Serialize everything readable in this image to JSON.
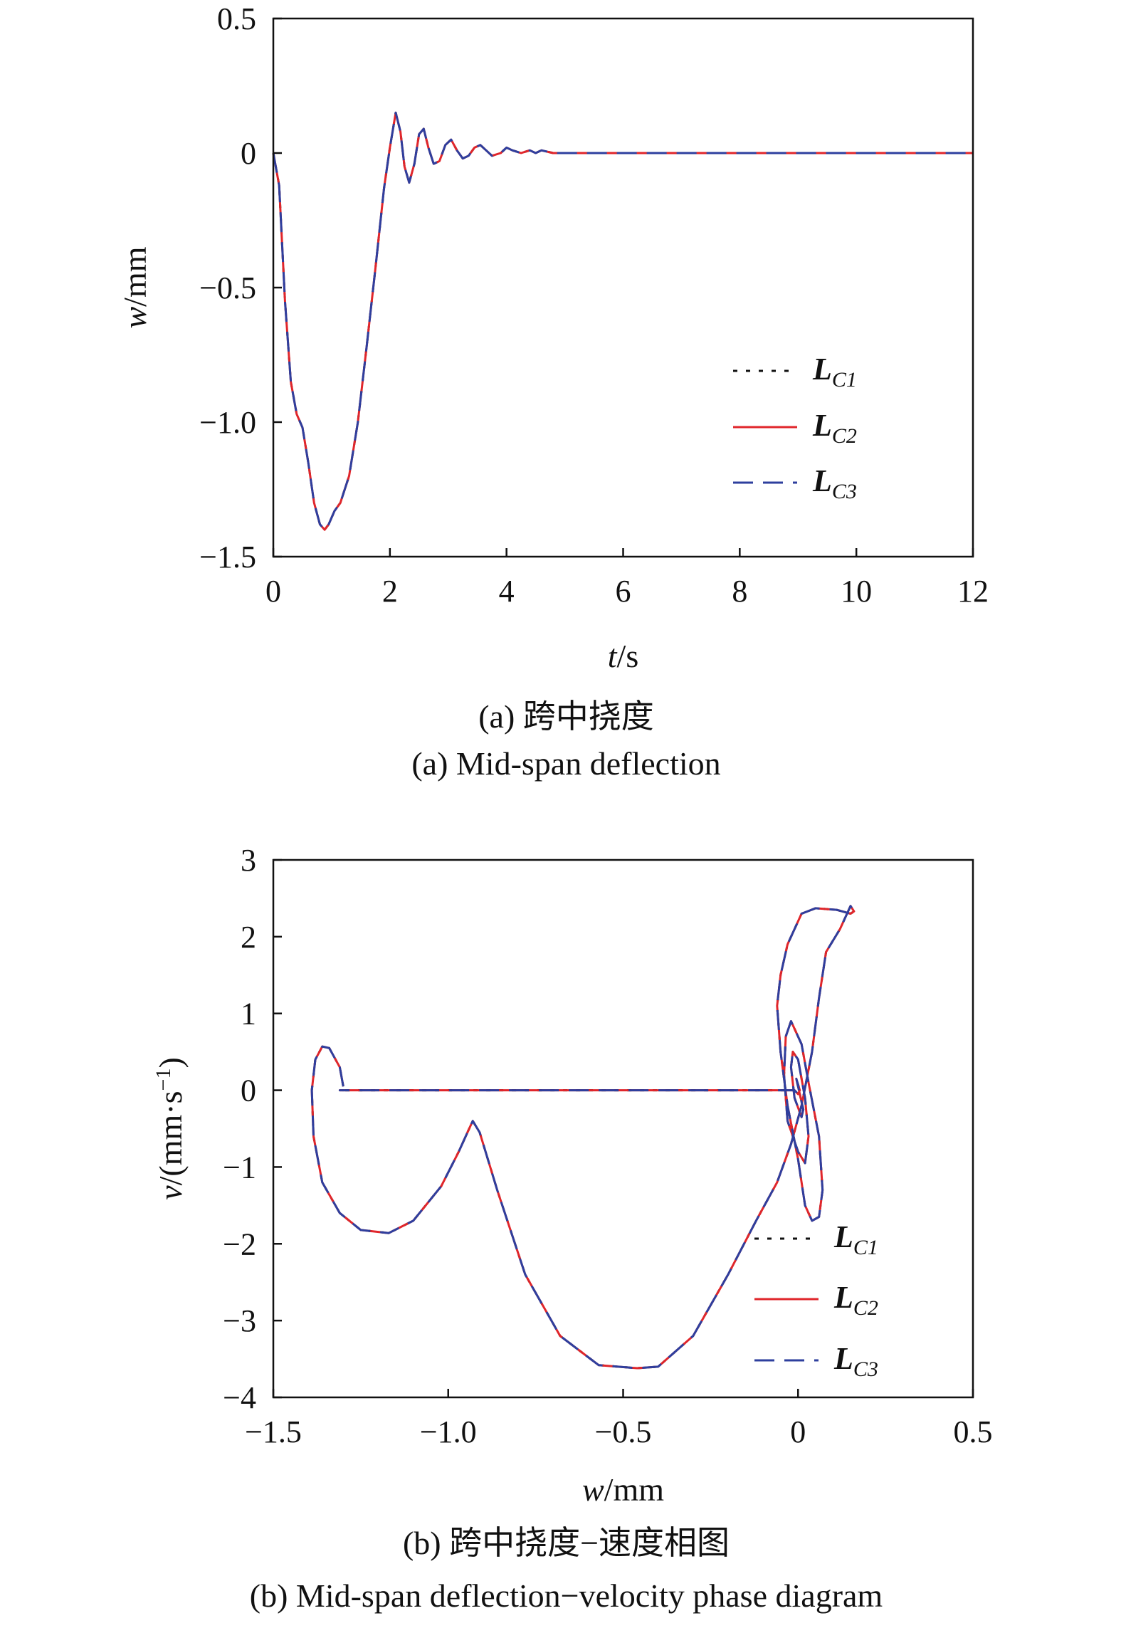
{
  "chart_data": [
    {
      "type": "line",
      "xlabel_var": "t",
      "xlabel_unit": "/s",
      "ylabel_var": "w",
      "ylabel_unit": "/mm",
      "xlim": [
        0,
        12
      ],
      "ylim": [
        -1.5,
        0.5
      ],
      "xticks": [
        "0",
        "2",
        "4",
        "6",
        "8",
        "10",
        "12"
      ],
      "xtick_values": [
        0,
        2,
        4,
        6,
        8,
        10,
        12
      ],
      "yticks": [
        "0.5",
        "0",
        "−0.5",
        "−1.0",
        "−1.5"
      ],
      "ytick_values": [
        0.5,
        0,
        -0.5,
        -1.0,
        -1.5
      ],
      "caption_cn": "(a) 跨中挠度",
      "caption_en": "(a) Mid-span deflection",
      "legend_position": "right",
      "series": [
        {
          "name": "LC1",
          "label_main": "L",
          "label_sub": "C1",
          "color": "#111111",
          "style": "dotted"
        },
        {
          "name": "LC2",
          "label_main": "L",
          "label_sub": "C2",
          "color": "#e0262b",
          "style": "solid"
        },
        {
          "name": "LC3",
          "label_main": "L",
          "label_sub": "C3",
          "color": "#2e3f9e",
          "style": "dashed"
        }
      ],
      "x": [
        0,
        0.1,
        0.2,
        0.3,
        0.4,
        0.5,
        0.6,
        0.7,
        0.8,
        0.88,
        0.95,
        1.05,
        1.15,
        1.3,
        1.45,
        1.6,
        1.75,
        1.9,
        2.0,
        2.1,
        2.18,
        2.25,
        2.33,
        2.42,
        2.5,
        2.58,
        2.66,
        2.75,
        2.85,
        2.95,
        3.05,
        3.15,
        3.25,
        3.35,
        3.45,
        3.55,
        3.65,
        3.75,
        3.9,
        4.0,
        4.1,
        4.25,
        4.4,
        4.5,
        4.6,
        4.8,
        5.0,
        5.2,
        5.5,
        6.0,
        7.0,
        8.0,
        9.0,
        10.0,
        11.0,
        12.0
      ],
      "values": [
        0,
        -0.12,
        -0.55,
        -0.85,
        -0.97,
        -1.02,
        -1.15,
        -1.3,
        -1.38,
        -1.4,
        -1.38,
        -1.33,
        -1.3,
        -1.2,
        -1.0,
        -0.72,
        -0.43,
        -0.13,
        0.02,
        0.15,
        0.08,
        -0.05,
        -0.11,
        -0.04,
        0.07,
        0.09,
        0.02,
        -0.04,
        -0.03,
        0.03,
        0.05,
        0.01,
        -0.02,
        -0.01,
        0.02,
        0.03,
        0.01,
        -0.01,
        0.0,
        0.02,
        0.01,
        0.0,
        0.01,
        0.0,
        0.01,
        0.0,
        0.0,
        0.0,
        0.0,
        0,
        0,
        0,
        0,
        0,
        0,
        0
      ]
    },
    {
      "type": "line",
      "xlabel_var": "w",
      "xlabel_unit": "/mm",
      "ylabel_var": "v",
      "ylabel_unit": "/(mm·s",
      "ylabel_sup": "−1",
      "ylabel_close": ")",
      "xlim": [
        -1.5,
        0.5
      ],
      "ylim": [
        -4,
        3
      ],
      "xticks": [
        "−1.5",
        "−1.0",
        "−0.5",
        "0",
        "0.5"
      ],
      "xtick_values": [
        -1.5,
        -1.0,
        -0.5,
        0,
        0.5
      ],
      "yticks": [
        "3",
        "2",
        "1",
        "0",
        "−1",
        "−2",
        "−3",
        "−4"
      ],
      "ytick_values": [
        3,
        2,
        1,
        0,
        -1,
        -2,
        -3,
        -4
      ],
      "caption_cn": "(b) 跨中挠度−速度相图",
      "caption_en": "(b) Mid-span deflection−velocity phase diagram",
      "legend_position": "bottom-right",
      "series": [
        {
          "name": "LC1",
          "label_main": "L",
          "label_sub": "C1",
          "color": "#111111",
          "style": "dotted"
        },
        {
          "name": "LC2",
          "label_main": "L",
          "label_sub": "C2",
          "color": "#e0262b",
          "style": "solid"
        },
        {
          "name": "LC3",
          "label_main": "L",
          "label_sub": "C3",
          "color": "#2e3f9e",
          "style": "dashed"
        }
      ],
      "x": [
        -1.3,
        -1.31,
        -1.34,
        -1.36,
        -1.38,
        -1.39,
        -1.385,
        -1.36,
        -1.31,
        -1.25,
        -1.17,
        -1.1,
        -1.02,
        -0.97,
        -0.94,
        -0.93,
        -0.91,
        -0.86,
        -0.78,
        -0.68,
        -0.57,
        -0.46,
        -0.4,
        -0.3,
        -0.2,
        -0.12,
        -0.06,
        -0.02,
        0.01,
        0.04,
        0.06,
        0.08,
        0.12,
        0.15,
        0.16,
        0.15,
        0.11,
        0.05,
        0.01,
        -0.03,
        -0.05,
        -0.06,
        -0.05,
        -0.03,
        0.0,
        0.02,
        0.04,
        0.06,
        0.07,
        0.06,
        0.03,
        0.01,
        -0.02,
        -0.035,
        -0.04,
        -0.03,
        0.0,
        0.02,
        0.03,
        0.02,
        0.0,
        -0.015,
        -0.02,
        -0.01,
        0.01,
        0.015,
        0.0,
        -0.005,
        0.005,
        0.0,
        -0.01,
        -0.02,
        -0.04,
        -0.06,
        -0.09,
        -0.14,
        -0.2,
        -0.3,
        -0.45,
        -0.6,
        -0.75,
        -0.88,
        -1.0,
        -1.15,
        -1.25,
        -1.31,
        -1.3
      ],
      "values": [
        0.05,
        0.3,
        0.55,
        0.57,
        0.4,
        0.0,
        -0.6,
        -1.2,
        -1.6,
        -1.82,
        -1.86,
        -1.7,
        -1.25,
        -0.8,
        -0.5,
        -0.4,
        -0.55,
        -1.3,
        -2.4,
        -3.2,
        -3.58,
        -3.62,
        -3.6,
        -3.2,
        -2.4,
        -1.7,
        -1.2,
        -0.7,
        -0.2,
        0.5,
        1.2,
        1.8,
        2.1,
        2.4,
        2.33,
        2.3,
        2.35,
        2.37,
        2.3,
        1.9,
        1.5,
        1.1,
        0.5,
        -0.2,
        -0.9,
        -1.5,
        -1.7,
        -1.65,
        -1.3,
        -0.6,
        0.1,
        0.6,
        0.9,
        0.7,
        0.2,
        -0.4,
        -0.8,
        -0.95,
        -0.6,
        -0.1,
        0.4,
        0.5,
        0.3,
        -0.1,
        -0.35,
        -0.25,
        0.05,
        0.15,
        0.0,
        -0.05,
        0.0,
        0.0,
        0.0,
        0.0,
        0.0,
        0.0,
        0.0,
        0.0,
        0.0,
        0.0,
        0.0,
        0.0,
        0.0,
        0.0,
        0.0,
        0.0,
        0.0
      ]
    }
  ]
}
